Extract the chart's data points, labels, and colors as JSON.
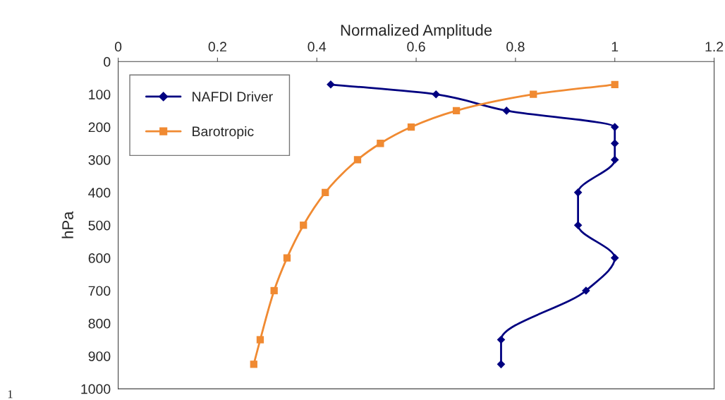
{
  "chart_data": {
    "type": "line",
    "orientation": "horizontal",
    "xlabel": "Normalized Amplitude",
    "ylabel": "hPa",
    "xlim": [
      0,
      1.2
    ],
    "xticks": [
      0,
      0.2,
      0.4,
      0.6,
      0.8,
      1,
      1.2
    ],
    "ylim": [
      1000,
      0
    ],
    "yticks": [
      0,
      100,
      200,
      300,
      400,
      500,
      600,
      700,
      800,
      900,
      1000
    ],
    "grid": false,
    "legend": "top left",
    "annotations": [
      "1"
    ],
    "series": [
      {
        "name": "NAFDI Driver",
        "color": "#000080",
        "marker": "diamond",
        "x": [
          70,
          100,
          150,
          200,
          250,
          300,
          400,
          500,
          600,
          700,
          850,
          925
        ],
        "values": [
          0.428,
          0.64,
          0.782,
          1.0,
          1.0,
          1.0,
          0.926,
          0.926,
          1.0,
          0.942,
          0.771,
          0.771
        ]
      },
      {
        "name": "Barotropic",
        "color": "#f08a32",
        "marker": "square",
        "x": [
          70,
          100,
          150,
          200,
          250,
          300,
          400,
          500,
          600,
          700,
          850,
          925
        ],
        "values": [
          1.0,
          0.836,
          0.681,
          0.59,
          0.528,
          0.482,
          0.417,
          0.373,
          0.34,
          0.314,
          0.286,
          0.273
        ]
      }
    ]
  }
}
